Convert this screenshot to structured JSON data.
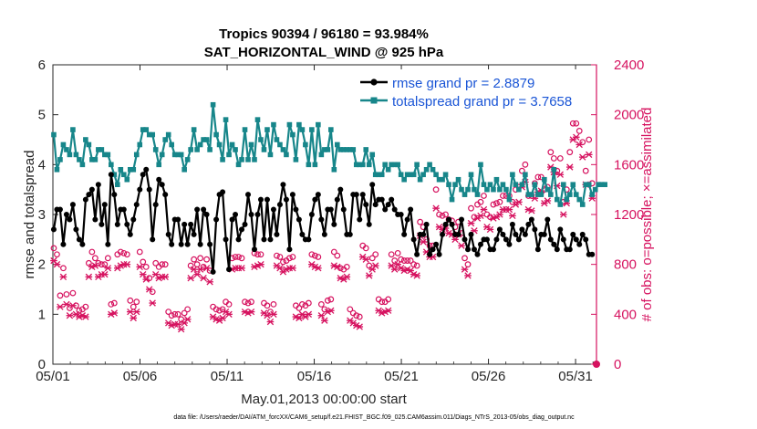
{
  "chart_data": {
    "type": "line",
    "title_line1": "Tropics 90394 / 96180 = 93.984%",
    "title_line2": "SAT_HORIZONTAL_WIND @ 925 hPa",
    "xlabel": "May.01,2013 00:00:00 start",
    "ylabel_left": "rmse and totalspread",
    "ylabel_right": "# of obs: o=possible; ×=assimilated",
    "footnote": "data file: /Users/raeder/DAI/ATM_forcXX/CAM6_setup/f.e21.FHIST_BGC.f09_025.CAM6assim.011/Diags_NTrS_2013-05/obs_diag_output.nc",
    "xlim": [
      0,
      31.2
    ],
    "ylim_left": [
      0,
      6
    ],
    "ylim_right": [
      0,
      2400
    ],
    "x_ticks": [
      0,
      5,
      10,
      15,
      20,
      25,
      30
    ],
    "x_tick_labels": [
      "05/01",
      "05/06",
      "05/11",
      "05/16",
      "05/21",
      "05/26",
      "05/31"
    ],
    "y_left_ticks": [
      "0",
      "1",
      "2",
      "3",
      "4",
      "5",
      "6"
    ],
    "y_right_ticks": [
      "0",
      "400",
      "800",
      "1200",
      "1600",
      "2000",
      "2400"
    ],
    "legend": [
      {
        "label": "rmse grand pr = 2.8879",
        "color": "#000000"
      },
      {
        "label": "totalspread grand pr = 3.7658",
        "color": "#17868a"
      }
    ],
    "colors": {
      "rmse": "#000000",
      "spread": "#17868a",
      "obs": "#d6125f",
      "legend_text": "#1a55d6",
      "axis": "#262626"
    },
    "series": [
      {
        "name": "rmse",
        "values": [
          2.7,
          3.1,
          3.1,
          2.4,
          3.0,
          2.9,
          3.2,
          2.7,
          2.5,
          2.4,
          3.3,
          3.4,
          3.5,
          2.9,
          3.6,
          2.8,
          3.2,
          2.4,
          3.8,
          3.4,
          2.8,
          3.1,
          3.1,
          2.8,
          2.6,
          2.9,
          3.2,
          3.5,
          3.8,
          3.9,
          3.5,
          2.5,
          3.2,
          3.7,
          3.6,
          3.4,
          2.6,
          2.4,
          2.9,
          2.9,
          2.4,
          2.8,
          2.4,
          2.8,
          2.6,
          3.1,
          2.4,
          3.1,
          3.0,
          2.4,
          1.85,
          2.9,
          3.4,
          3.45,
          2.5,
          1.9,
          2.9,
          3.0,
          2.5,
          2.7,
          2.8,
          3.4,
          3.0,
          2.3,
          3.0,
          3.3,
          2.5,
          3.3,
          2.5,
          3.1,
          2.6,
          3.2,
          3.6,
          3.3,
          2.3,
          3.4,
          3.1,
          2.9,
          2.6,
          2.5,
          2.5,
          3.0,
          3.3,
          3.4,
          2.9,
          2.6,
          3.1,
          3.1,
          2.8,
          3.3,
          3.5,
          3.1,
          2.6,
          2.6,
          3.4,
          3.4,
          2.9,
          3.4,
          3.2,
          2.8,
          3.6,
          3.2,
          3.3,
          3.3,
          3.1,
          3.2,
          3.3,
          3.1,
          3.0,
          3.0,
          2.6,
          2.9,
          3.1,
          2.5,
          2.2,
          2.6,
          2.6,
          2.8,
          2.2,
          2.3,
          2.4,
          2.2,
          2.6,
          2.8,
          2.9,
          2.8,
          2.6,
          2.6,
          2.9,
          2.5,
          2.3,
          2.6,
          2.3,
          2.2,
          2.4,
          2.5,
          2.5,
          2.3,
          2.3,
          2.5,
          2.7,
          2.6,
          2.5,
          2.4,
          2.8,
          2.6,
          2.5,
          2.7,
          2.6,
          2.8,
          2.9,
          2.7,
          2.3,
          2.6,
          2.6,
          2.9,
          2.5,
          2.4,
          2.3,
          2.7,
          2.5,
          2.3,
          2.3,
          2.6,
          2.5,
          2.4,
          2.6,
          2.5,
          2.2,
          2.2
        ]
      },
      {
        "name": "totalspread",
        "values": [
          4.6,
          3.9,
          4.1,
          4.4,
          4.3,
          4.2,
          4.7,
          4.2,
          4.1,
          4.0,
          4.5,
          4.4,
          4.1,
          4.1,
          4.3,
          4.3,
          4.2,
          4.2,
          4.0,
          3.8,
          3.6,
          3.9,
          3.8,
          3.7,
          3.9,
          3.9,
          4.2,
          4.4,
          4.7,
          4.7,
          4.6,
          4.6,
          4.3,
          4.0,
          4.2,
          4.5,
          4.6,
          4.4,
          4.2,
          4.2,
          4.2,
          3.9,
          4.1,
          4.3,
          4.7,
          4.3,
          4.4,
          4.5,
          4.5,
          4.3,
          5.2,
          4.6,
          4.4,
          4.1,
          4.9,
          4.2,
          4.4,
          4.3,
          4.0,
          4.1,
          4.7,
          4.1,
          4.4,
          4.1,
          4.9,
          4.5,
          4.3,
          4.7,
          4.2,
          4.8,
          4.5,
          4.4,
          4.3,
          4.2,
          4.8,
          4.6,
          4.1,
          4.8,
          4.7,
          4.4,
          4.0,
          4.7,
          4.0,
          4.8,
          4.2,
          4.3,
          4.3,
          4.7,
          3.9,
          4.4,
          4.3,
          4.3,
          4.3,
          4.3,
          4.3,
          4.0,
          4.0,
          4.0,
          4.3,
          4.0,
          4.2,
          3.8,
          3.8,
          3.8,
          4.0,
          3.9,
          4.0,
          4.0,
          4.0,
          3.8,
          3.7,
          3.8,
          3.8,
          3.8,
          4.0,
          3.7,
          3.8,
          3.9,
          4.0,
          3.9,
          3.8,
          3.7,
          3.7,
          3.8,
          3.6,
          3.3,
          3.6,
          3.7,
          3.5,
          3.4,
          3.5,
          3.8,
          3.5,
          3.4,
          4.0,
          3.6,
          3.5,
          3.6,
          3.5,
          3.7,
          3.5,
          3.6,
          3.5,
          3.3,
          3.8,
          3.6,
          3.5,
          3.6,
          3.8,
          3.4,
          3.4,
          3.6,
          3.4,
          3.4,
          3.7,
          3.5,
          3.4,
          3.9,
          3.3,
          3.2,
          3.6,
          3.3,
          3.4,
          3.6,
          3.4,
          3.3,
          3.2,
          3.6,
          3.6,
          3.4,
          3.5,
          3.6,
          3.6,
          3.6
        ]
      },
      {
        "name": "obs_possible",
        "values": [
          930,
          880,
          550,
          770,
          560,
          450,
          570,
          470,
          430,
          440,
          460,
          810,
          900,
          850,
          810,
          800,
          800,
          850,
          480,
          490,
          880,
          900,
          890,
          880,
          510,
          460,
          500,
          900,
          820,
          780,
          690,
          580,
          810,
          780,
          800,
          800,
          420,
          390,
          400,
          400,
          360,
          410,
          440,
          790,
          840,
          800,
          850,
          780,
          840,
          750,
          460,
          440,
          430,
          440,
          500,
          480,
          850,
          860,
          860,
          850,
          500,
          490,
          500,
          890,
          880,
          880,
          490,
          470,
          420,
          480,
          870,
          860,
          820,
          830,
          850,
          860,
          470,
          450,
          480,
          470,
          490,
          880,
          870,
          860,
          480,
          440,
          510,
          520,
          900,
          870,
          770,
          760,
          780,
          440,
          410,
          390,
          380,
          950,
          930,
          790,
          850,
          880,
          520,
          500,
          500,
          520,
          880,
          830,
          890,
          840,
          830,
          830,
          830,
          800,
          790,
          1140,
          1100,
          1000,
          950,
          950,
          1400,
          1200,
          1190,
          1200,
          1160,
          1150,
          1100,
          1140,
          1050,
          850,
          800,
          1250,
          1180,
          1280,
          1300,
          1350,
          1200,
          1180,
          1280,
          1290,
          1300,
          1350,
          1350,
          1350,
          1300,
          1400,
          1420,
          1550,
          1600,
          1350,
          1350,
          1450,
          1500,
          1500,
          1400,
          1420,
          1700,
          1650,
          1550,
          1650,
          1300,
          1400,
          1700,
          1930,
          1930,
          1870,
          1780,
          1550,
          1800,
          1450
        ]
      },
      {
        "name": "obs_assimilated",
        "values": [
          830,
          800,
          460,
          700,
          480,
          390,
          470,
          400,
          380,
          390,
          380,
          700,
          780,
          790,
          700,
          720,
          720,
          770,
          400,
          410,
          770,
          790,
          800,
          800,
          420,
          370,
          420,
          780,
          720,
          680,
          600,
          490,
          720,
          690,
          700,
          700,
          330,
          310,
          320,
          320,
          280,
          330,
          360,
          690,
          760,
          720,
          760,
          690,
          770,
          660,
          380,
          360,
          350,
          370,
          420,
          400,
          760,
          770,
          770,
          770,
          420,
          410,
          420,
          780,
          790,
          800,
          410,
          390,
          340,
          400,
          790,
          770,
          740,
          760,
          770,
          770,
          380,
          370,
          400,
          380,
          400,
          800,
          780,
          770,
          390,
          350,
          420,
          430,
          790,
          780,
          690,
          680,
          700,
          350,
          330,
          310,
          300,
          860,
          840,
          710,
          760,
          790,
          430,
          410,
          420,
          430,
          790,
          760,
          800,
          770,
          750,
          760,
          750,
          720,
          710,
          1030,
          980,
          900,
          860,
          860,
          1250,
          1100,
          1080,
          1090,
          1050,
          1040,
          1000,
          1040,
          950,
          760,
          710,
          1130,
          1070,
          1170,
          1190,
          1240,
          1100,
          1080,
          1170,
          1180,
          1200,
          1240,
          1240,
          1240,
          1190,
          1280,
          1300,
          1420,
          1460,
          1240,
          1230,
          1330,
          1380,
          1390,
          1290,
          1310,
          1580,
          1540,
          1430,
          1520,
          1200,
          1290,
          1580,
          1800,
          1820,
          1760,
          1660,
          1440,
          1680,
          1330
        ]
      }
    ]
  }
}
